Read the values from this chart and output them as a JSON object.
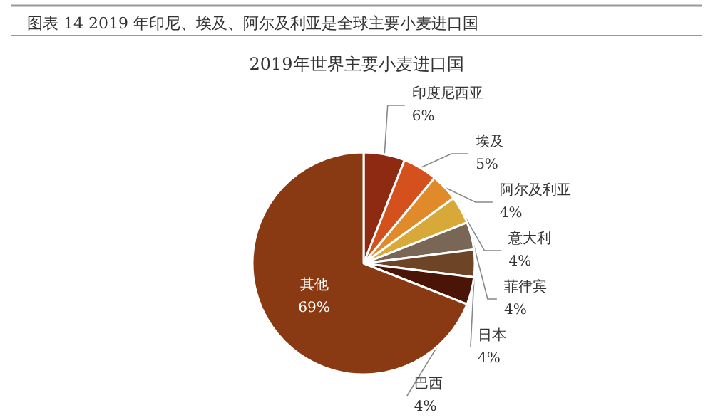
{
  "chart_data": {
    "type": "pie",
    "title": "图表 14 2019 年印尼、埃及、阿尔及利亚是全球主要小麦进口国",
    "subtitle": "2019年世界主要小麦进口国",
    "categories": [
      "印度尼西亚",
      "埃及",
      "阿尔及利亚",
      "意大利",
      "菲律宾",
      "日本",
      "巴西",
      "其他"
    ],
    "values": [
      6,
      5,
      4,
      4,
      4,
      4,
      4,
      69
    ],
    "value_labels": [
      "6%",
      "5%",
      "4%",
      "4%",
      "4%",
      "4%",
      "4%",
      "69%"
    ],
    "colors": [
      "#8e2a12",
      "#d4501c",
      "#e08a2a",
      "#d8a838",
      "#7a6656",
      "#6e4426",
      "#4a1406",
      "#8a3a12"
    ],
    "legend": false
  }
}
